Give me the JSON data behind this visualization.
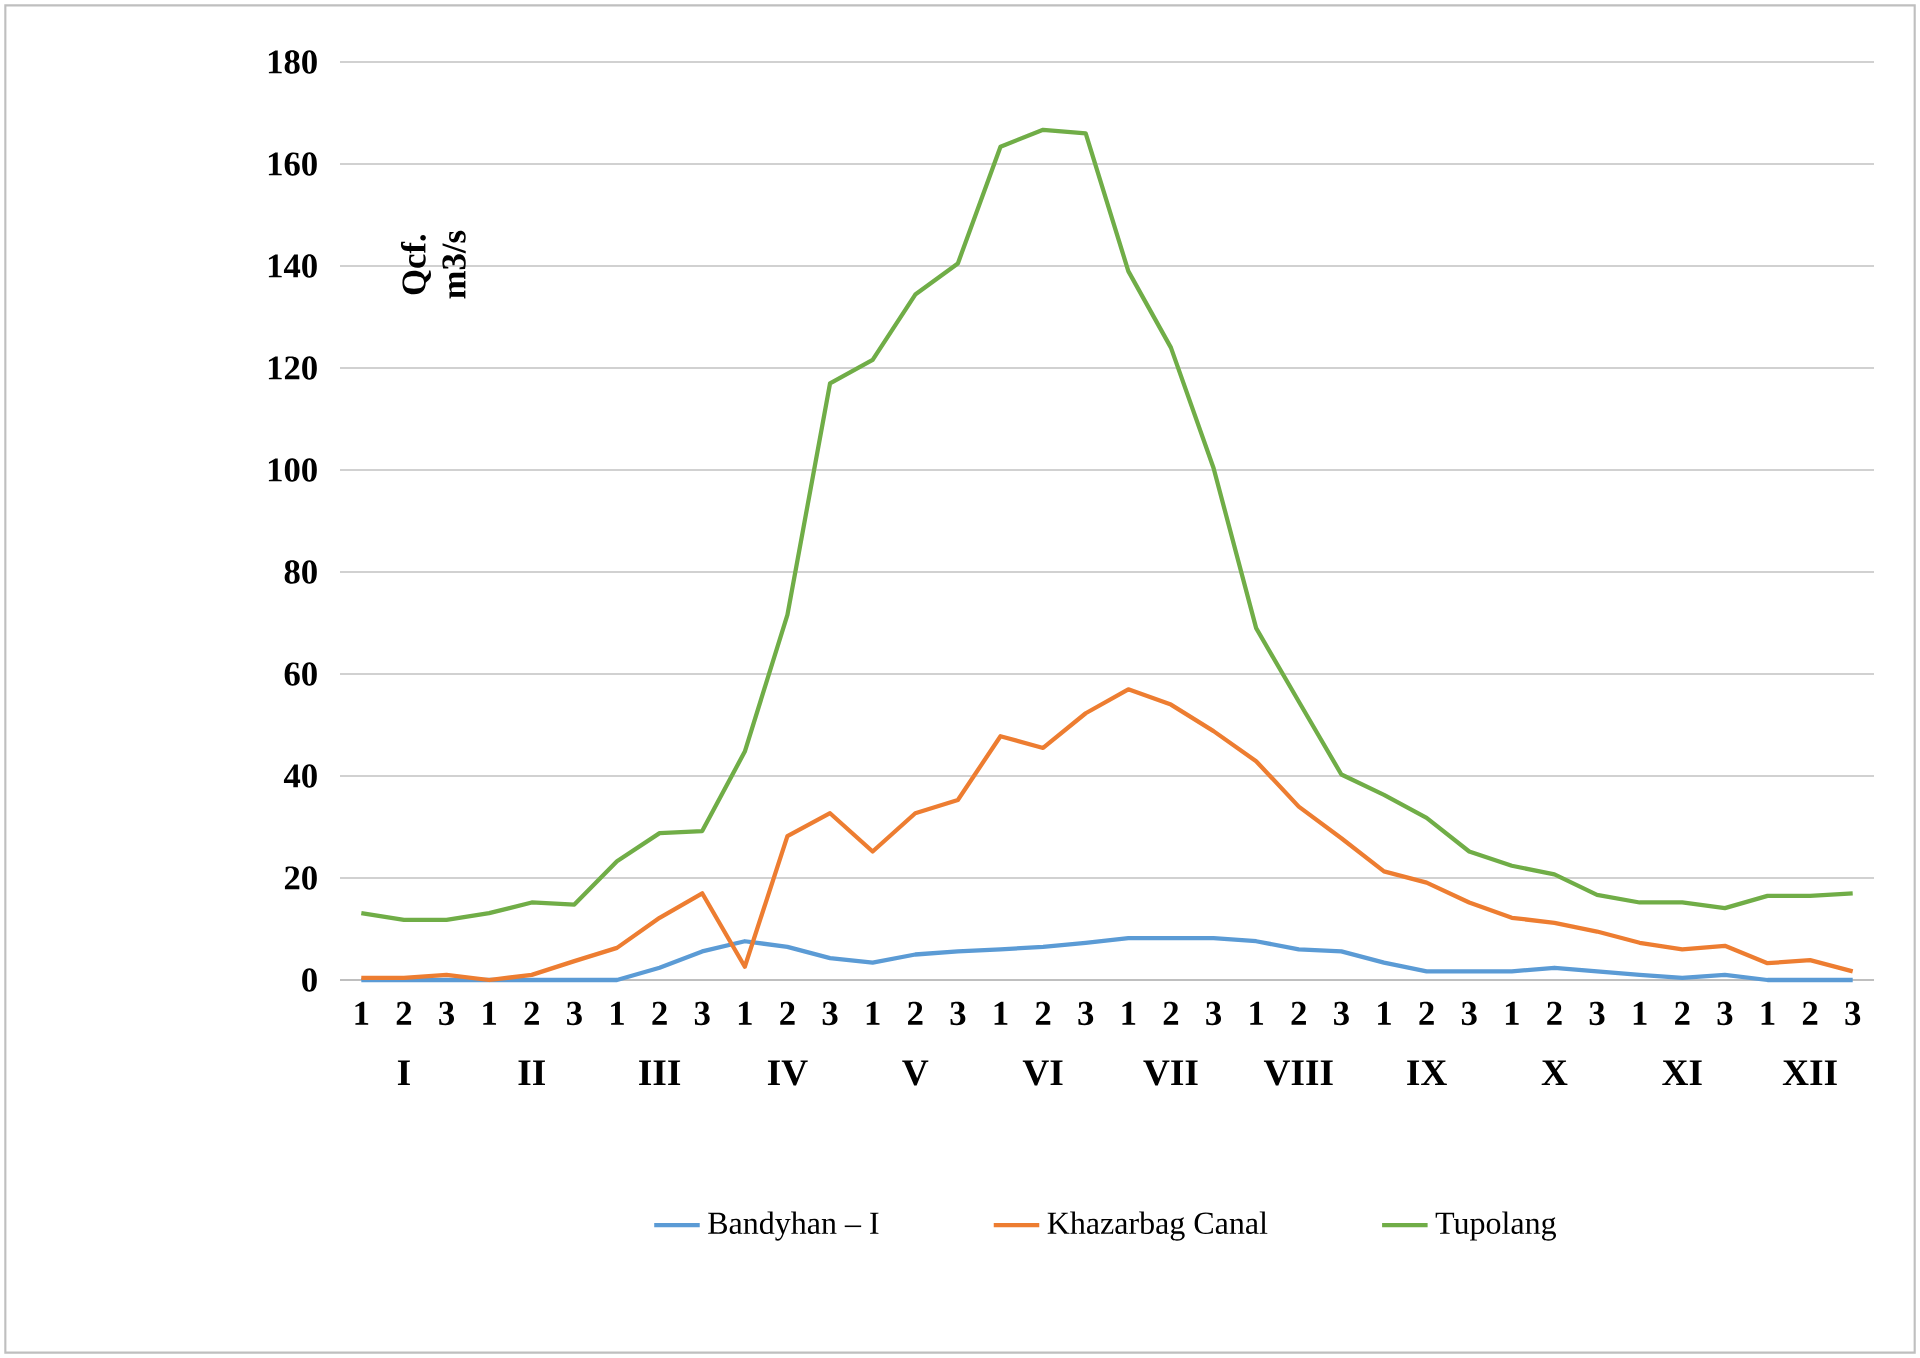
{
  "chart_data": {
    "type": "line",
    "ylabel": "Qcf. m3/s",
    "categories": [
      "1",
      "2",
      "3",
      "1",
      "2",
      "3",
      "1",
      "2",
      "3",
      "1",
      "2",
      "3",
      "1",
      "2",
      "3",
      "1",
      "2",
      "3",
      "1",
      "2",
      "3",
      "1",
      "2",
      "3",
      "1",
      "2",
      "3",
      "1",
      "2",
      "3",
      "1",
      "2",
      "3",
      "1",
      "2",
      "3"
    ],
    "annotations": [
      "I",
      "II",
      "III",
      "IV",
      "V",
      "VI",
      "VII",
      "VIII",
      "IX",
      "X",
      "XI",
      "XII"
    ],
    "series": [
      {
        "name": "Bandyhan – I",
        "color": "#5b9bd5",
        "values": [
          0,
          0,
          0,
          0,
          0,
          0,
          0,
          2.4,
          5.6,
          7.6,
          6.5,
          4.3,
          3.4,
          5,
          5.6,
          6,
          6.5,
          7.3,
          8.2,
          8.2,
          8.2,
          7.6,
          6,
          5.6,
          3.4,
          1.7,
          1.7,
          1.7,
          2.4,
          1.7,
          1,
          0.4,
          1,
          0,
          0,
          0
        ]
      },
      {
        "name": "Khazarbag Canal",
        "color": "#ed7d31",
        "values": [
          0.4,
          0.4,
          1,
          0,
          1,
          3.7,
          6.3,
          12.2,
          17,
          2.6,
          28.2,
          32.7,
          25.2,
          32.7,
          35.3,
          47.8,
          45.5,
          52.3,
          57,
          54,
          48.8,
          42.9,
          34,
          27.8,
          21.3,
          19.1,
          15.2,
          12.2,
          11.2,
          9.5,
          7.3,
          6,
          6.7,
          3.3,
          3.9,
          1.7
        ]
      },
      {
        "name": "Tupolang",
        "color": "#70ad47",
        "values": [
          13.1,
          11.8,
          11.8,
          13.1,
          15.2,
          14.8,
          23.3,
          28.8,
          29.2,
          44.8,
          71.6,
          117,
          121.6,
          134.4,
          140.5,
          163.4,
          166.7,
          166,
          139,
          124,
          100.4,
          69,
          54.6,
          40.3,
          36.3,
          31.8,
          25.2,
          22.4,
          20.7,
          16.7,
          15.2,
          15.2,
          14.1,
          16.5,
          16.5,
          17
        ]
      }
    ],
    "ylim": [
      0,
      180
    ],
    "yticks": [
      0,
      20,
      40,
      60,
      80,
      100,
      120,
      140,
      160,
      180
    ],
    "grid": "y",
    "legend": "bottom",
    "marker": "none",
    "line_style": "solid"
  }
}
